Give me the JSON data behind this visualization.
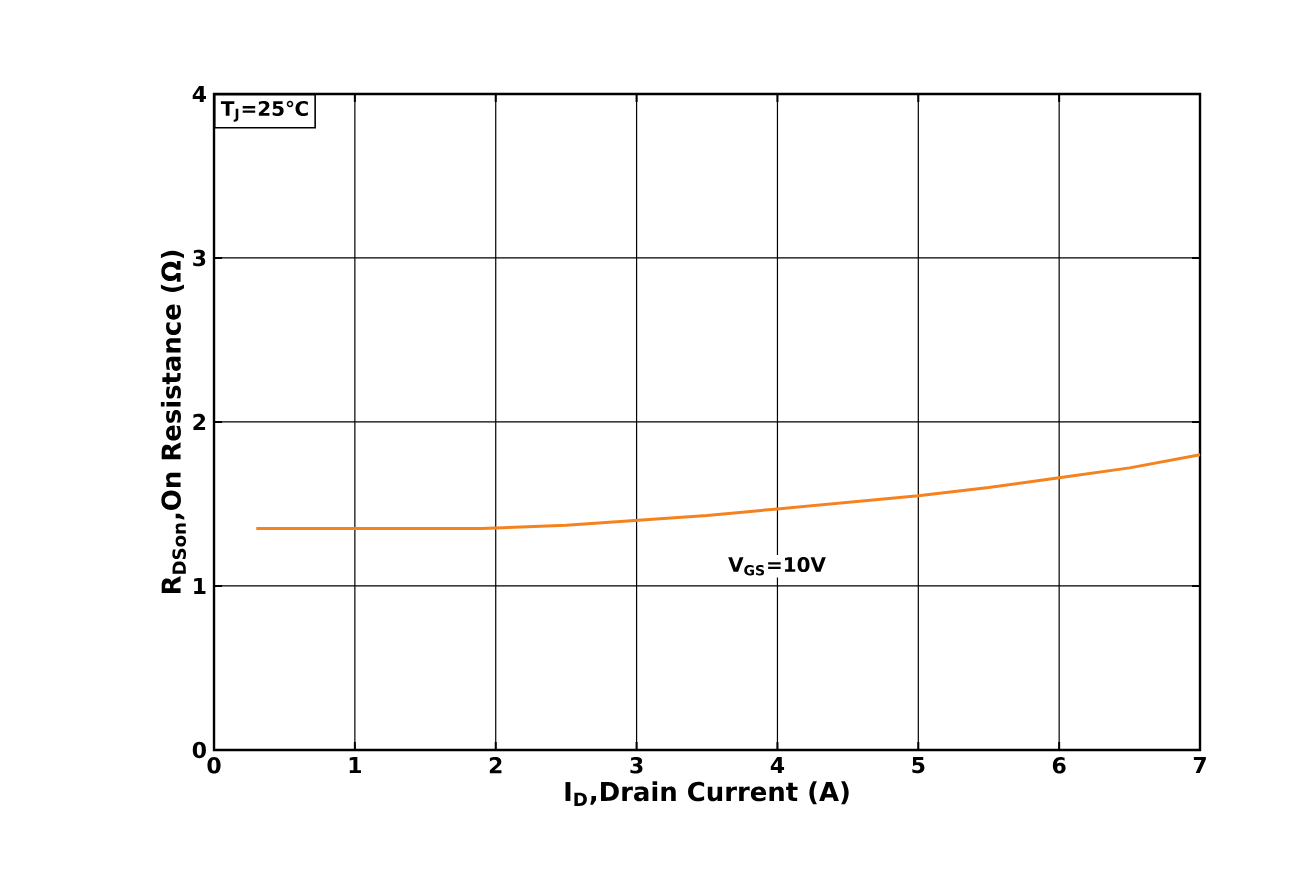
{
  "chart_data": {
    "type": "line",
    "xlabel": "I$_{D}$,Drain Current (A)",
    "ylabel": "R$_{DSon}$,On Resistance (Ω)",
    "xlim": [
      0,
      7
    ],
    "xticks": [
      0,
      1,
      2,
      3,
      4,
      5,
      6,
      7
    ],
    "ylim": [
      0,
      4
    ],
    "yticks": [
      0,
      1,
      2,
      3,
      4
    ],
    "grid": true,
    "marker": "none",
    "line_style": "solid",
    "annotations": [
      "T$_{J}$=25℃",
      "V$_{GS}$=10V"
    ],
    "series": [
      {
        "color": "#f5821f",
        "x": [
          0.3,
          1.0,
          1.5,
          1.9,
          2.5,
          3.0,
          3.5,
          4.0,
          4.5,
          5.0,
          5.5,
          6.0,
          6.5,
          7.0
        ],
        "values": [
          1.35,
          1.35,
          1.35,
          1.35,
          1.37,
          1.4,
          1.43,
          1.47,
          1.51,
          1.55,
          1.6,
          1.66,
          1.72,
          1.8
        ]
      }
    ]
  }
}
